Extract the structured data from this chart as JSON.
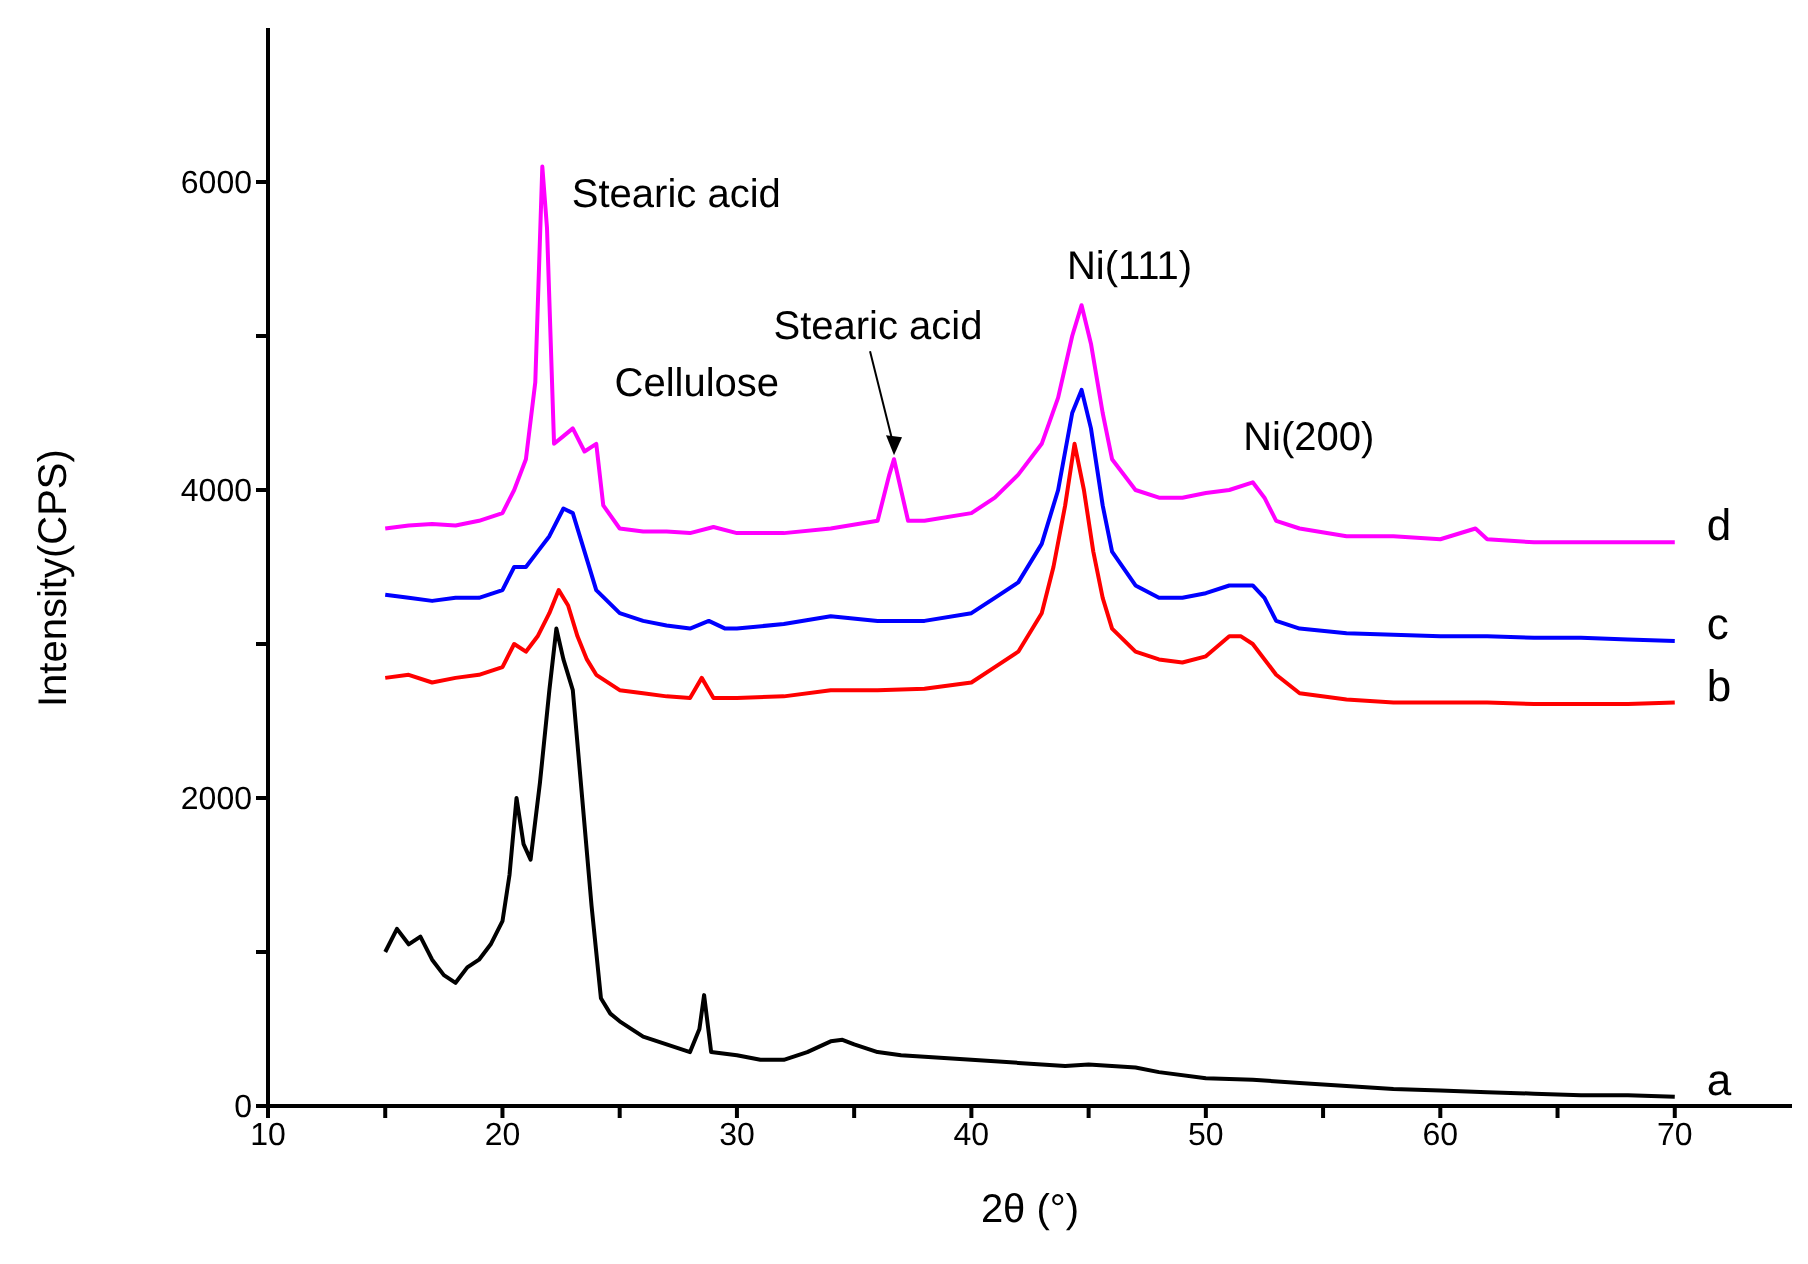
{
  "chart_data": {
    "type": "line",
    "xlabel": "2θ (°)",
    "ylabel": "Intensity(CPS)",
    "xlim": [
      10,
      75
    ],
    "ylim": [
      0,
      7000
    ],
    "xticks": [
      10,
      {
        "value": 15,
        "label": null
      },
      20,
      {
        "value": 25,
        "label": null
      },
      30,
      {
        "value": 35,
        "label": null
      },
      40,
      {
        "value": 45,
        "label": null
      },
      50,
      {
        "value": 55,
        "label": null
      },
      60,
      {
        "value": 65,
        "label": null
      },
      70
    ],
    "yticks": [
      0,
      {
        "value": 1000,
        "label": null
      },
      2000,
      {
        "value": 3000,
        "label": null
      },
      4000,
      {
        "value": 5000,
        "label": null
      },
      6000
    ],
    "grid": false,
    "marker": "none",
    "line_style": "solid",
    "annotations": [
      {
        "text": "Stearic acid",
        "x": 21.7,
        "y": 6100
      },
      {
        "text": "Cellulose",
        "x": 23,
        "y": 4400
      },
      {
        "text": "Stearic acid",
        "x": 36.7,
        "y": 4200
      },
      {
        "text": "Ni(111)",
        "x": 44.7,
        "y": 5200
      },
      {
        "text": "Ni(200)",
        "x": 52,
        "y": 4050
      }
    ],
    "series": [
      {
        "name": "a",
        "color": "#000000",
        "x": [
          15,
          15.5,
          16,
          16.5,
          17,
          17.5,
          18,
          18.5,
          19,
          19.5,
          20,
          20.3,
          20.6,
          20.9,
          21.2,
          21.6,
          22,
          22.3,
          22.6,
          23,
          23.4,
          23.8,
          24.2,
          24.6,
          25,
          26,
          27,
          28,
          28.4,
          28.6,
          28.9,
          30,
          31,
          32,
          33,
          34,
          34.5,
          35,
          36,
          37,
          38,
          40,
          42,
          44,
          45,
          46,
          47,
          48,
          50,
          52,
          54,
          56,
          58,
          60,
          62,
          64,
          66,
          68,
          70
        ],
        "values": [
          1000,
          1150,
          1050,
          1100,
          950,
          850,
          800,
          900,
          950,
          1050,
          1200,
          1500,
          2000,
          1700,
          1600,
          2100,
          2700,
          3100,
          2900,
          2700,
          2000,
          1300,
          700,
          600,
          550,
          450,
          400,
          350,
          500,
          720,
          350,
          330,
          300,
          300,
          350,
          420,
          430,
          400,
          350,
          330,
          320,
          300,
          280,
          260,
          270,
          260,
          250,
          220,
          180,
          170,
          150,
          130,
          110,
          100,
          90,
          80,
          70,
          70,
          60
        ]
      },
      {
        "name": "b",
        "color": "#ff0000",
        "x": [
          15,
          16,
          17,
          18,
          19,
          20,
          20.5,
          21,
          21.5,
          22,
          22.4,
          22.8,
          23.2,
          23.6,
          24,
          25,
          26,
          27,
          28,
          28.5,
          29,
          30,
          32,
          34,
          36,
          38,
          40,
          41,
          42,
          43,
          43.5,
          44,
          44.4,
          44.8,
          45.2,
          45.6,
          46,
          47,
          48,
          49,
          50,
          51,
          51.5,
          52,
          53,
          54,
          56,
          58,
          60,
          62,
          64,
          66,
          68,
          70
        ],
        "values": [
          2780,
          2800,
          2750,
          2780,
          2800,
          2850,
          3000,
          2950,
          3050,
          3200,
          3350,
          3250,
          3050,
          2900,
          2800,
          2700,
          2680,
          2660,
          2650,
          2780,
          2650,
          2650,
          2660,
          2700,
          2700,
          2710,
          2750,
          2850,
          2950,
          3200,
          3500,
          3900,
          4300,
          4000,
          3600,
          3300,
          3100,
          2950,
          2900,
          2880,
          2920,
          3050,
          3050,
          3000,
          2800,
          2680,
          2640,
          2620,
          2620,
          2620,
          2610,
          2610,
          2610,
          2620
        ]
      },
      {
        "name": "c",
        "color": "#0000ff",
        "x": [
          15,
          16,
          17,
          18,
          19,
          20,
          20.5,
          21,
          21.5,
          22,
          22.6,
          23,
          23.4,
          24,
          25,
          26,
          27,
          28,
          28.8,
          29.5,
          30,
          32,
          34,
          36,
          38,
          40,
          41,
          42,
          43,
          43.7,
          44.3,
          44.7,
          45.1,
          45.6,
          46,
          47,
          48,
          49,
          50,
          51,
          52,
          52.5,
          53,
          54,
          56,
          58,
          60,
          62,
          64,
          66,
          68,
          70
        ],
        "values": [
          3320,
          3300,
          3280,
          3300,
          3300,
          3350,
          3500,
          3500,
          3600,
          3700,
          3880,
          3850,
          3650,
          3350,
          3200,
          3150,
          3120,
          3100,
          3150,
          3100,
          3100,
          3130,
          3180,
          3150,
          3150,
          3200,
          3300,
          3400,
          3650,
          4000,
          4500,
          4650,
          4400,
          3900,
          3600,
          3380,
          3300,
          3300,
          3330,
          3380,
          3380,
          3300,
          3150,
          3100,
          3070,
          3060,
          3050,
          3050,
          3040,
          3040,
          3030,
          3020
        ]
      },
      {
        "name": "d",
        "color": "#ff00ff",
        "x": [
          15,
          16,
          17,
          18,
          19,
          20,
          20.5,
          21,
          21.4,
          21.7,
          21.9,
          22.2,
          22.6,
          23,
          23.5,
          24,
          24.3,
          25,
          26,
          27,
          28,
          29,
          30,
          32,
          34,
          36,
          36.5,
          36.7,
          37,
          37.3,
          38,
          40,
          41,
          42,
          43,
          43.7,
          44.3,
          44.7,
          45.1,
          45.6,
          46,
          47,
          48,
          49,
          50,
          51,
          52,
          52.5,
          53,
          54,
          56,
          58,
          60,
          61.5,
          62,
          64,
          66,
          68,
          70
        ],
        "values": [
          3750,
          3770,
          3780,
          3770,
          3800,
          3850,
          4000,
          4200,
          4700,
          6100,
          5700,
          4300,
          4350,
          4400,
          4250,
          4300,
          3900,
          3750,
          3730,
          3730,
          3720,
          3760,
          3720,
          3720,
          3750,
          3800,
          4100,
          4200,
          4000,
          3800,
          3800,
          3850,
          3950,
          4100,
          4300,
          4600,
          5000,
          5200,
          4950,
          4500,
          4200,
          4000,
          3950,
          3950,
          3980,
          4000,
          4050,
          3950,
          3800,
          3750,
          3700,
          3700,
          3680,
          3750,
          3680,
          3660,
          3660,
          3660,
          3660
        ]
      }
    ]
  }
}
